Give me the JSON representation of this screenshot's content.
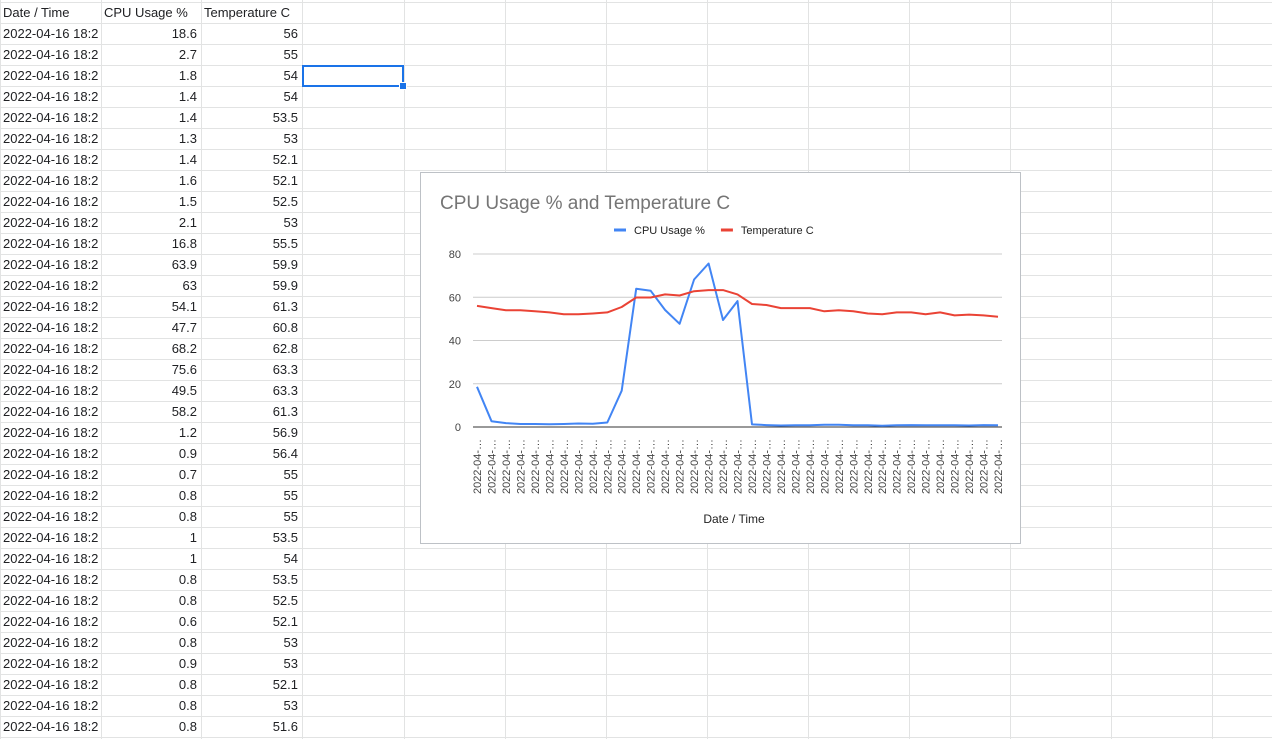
{
  "sheet": {
    "columns": [
      "Date / Time",
      "CPU Usage %",
      "Temperature C"
    ],
    "rows": [
      {
        "date": "2022-04-16 18:2",
        "cpu": "18.6",
        "temp": "56"
      },
      {
        "date": "2022-04-16 18:2",
        "cpu": "2.7",
        "temp": "55"
      },
      {
        "date": "2022-04-16 18:2",
        "cpu": "1.8",
        "temp": "54"
      },
      {
        "date": "2022-04-16 18:2",
        "cpu": "1.4",
        "temp": "54"
      },
      {
        "date": "2022-04-16 18:2",
        "cpu": "1.4",
        "temp": "53.5"
      },
      {
        "date": "2022-04-16 18:2",
        "cpu": "1.3",
        "temp": "53"
      },
      {
        "date": "2022-04-16 18:2",
        "cpu": "1.4",
        "temp": "52.1"
      },
      {
        "date": "2022-04-16 18:2",
        "cpu": "1.6",
        "temp": "52.1"
      },
      {
        "date": "2022-04-16 18:2",
        "cpu": "1.5",
        "temp": "52.5"
      },
      {
        "date": "2022-04-16 18:2",
        "cpu": "2.1",
        "temp": "53"
      },
      {
        "date": "2022-04-16 18:2",
        "cpu": "16.8",
        "temp": "55.5"
      },
      {
        "date": "2022-04-16 18:2",
        "cpu": "63.9",
        "temp": "59.9"
      },
      {
        "date": "2022-04-16 18:2",
        "cpu": "63",
        "temp": "59.9"
      },
      {
        "date": "2022-04-16 18:2",
        "cpu": "54.1",
        "temp": "61.3"
      },
      {
        "date": "2022-04-16 18:2",
        "cpu": "47.7",
        "temp": "60.8"
      },
      {
        "date": "2022-04-16 18:2",
        "cpu": "68.2",
        "temp": "62.8"
      },
      {
        "date": "2022-04-16 18:2",
        "cpu": "75.6",
        "temp": "63.3"
      },
      {
        "date": "2022-04-16 18:2",
        "cpu": "49.5",
        "temp": "63.3"
      },
      {
        "date": "2022-04-16 18:2",
        "cpu": "58.2",
        "temp": "61.3"
      },
      {
        "date": "2022-04-16 18:2",
        "cpu": "1.2",
        "temp": "56.9"
      },
      {
        "date": "2022-04-16 18:2",
        "cpu": "0.9",
        "temp": "56.4"
      },
      {
        "date": "2022-04-16 18:2",
        "cpu": "0.7",
        "temp": "55"
      },
      {
        "date": "2022-04-16 18:2",
        "cpu": "0.8",
        "temp": "55"
      },
      {
        "date": "2022-04-16 18:2",
        "cpu": "0.8",
        "temp": "55"
      },
      {
        "date": "2022-04-16 18:2",
        "cpu": "1",
        "temp": "53.5"
      },
      {
        "date": "2022-04-16 18:2",
        "cpu": "1",
        "temp": "54"
      },
      {
        "date": "2022-04-16 18:2",
        "cpu": "0.8",
        "temp": "53.5"
      },
      {
        "date": "2022-04-16 18:2",
        "cpu": "0.8",
        "temp": "52.5"
      },
      {
        "date": "2022-04-16 18:2",
        "cpu": "0.6",
        "temp": "52.1"
      },
      {
        "date": "2022-04-16 18:2",
        "cpu": "0.8",
        "temp": "53"
      },
      {
        "date": "2022-04-16 18:2",
        "cpu": "0.9",
        "temp": "53"
      },
      {
        "date": "2022-04-16 18:2",
        "cpu": "0.8",
        "temp": "52.1"
      },
      {
        "date": "2022-04-16 18:2",
        "cpu": "0.8",
        "temp": "53"
      },
      {
        "date": "2022-04-16 18:2",
        "cpu": "0.8",
        "temp": "51.6"
      }
    ]
  },
  "chart_data": {
    "type": "line",
    "title": "CPU Usage % and Temperature C",
    "xlabel": "Date / Time",
    "ylabel": "",
    "ylim": [
      0,
      80
    ],
    "yticks": [
      0,
      20,
      40,
      60,
      80
    ],
    "grid": true,
    "legend_position": "top",
    "x_tick_label": "2022-04-…",
    "series": [
      {
        "name": "CPU Usage %",
        "color": "#4285f4",
        "values": [
          18.6,
          2.7,
          1.8,
          1.4,
          1.4,
          1.3,
          1.4,
          1.6,
          1.5,
          2.1,
          16.8,
          63.9,
          63,
          54.1,
          47.7,
          68.2,
          75.6,
          49.5,
          58.2,
          1.2,
          0.9,
          0.7,
          0.8,
          0.8,
          1,
          1,
          0.8,
          0.8,
          0.6,
          0.8,
          0.9,
          0.8,
          0.8,
          0.8,
          0.7,
          0.9,
          0.8
        ]
      },
      {
        "name": "Temperature C",
        "color": "#ea4335",
        "values": [
          56,
          55,
          54,
          54,
          53.5,
          53,
          52.1,
          52.1,
          52.5,
          53,
          55.5,
          59.9,
          59.9,
          61.3,
          60.8,
          62.8,
          63.3,
          63.3,
          61.3,
          56.9,
          56.4,
          55,
          55,
          55,
          53.5,
          54,
          53.5,
          52.5,
          52.1,
          53,
          53,
          52.1,
          53,
          51.6,
          52,
          51.6,
          51
        ]
      }
    ]
  }
}
